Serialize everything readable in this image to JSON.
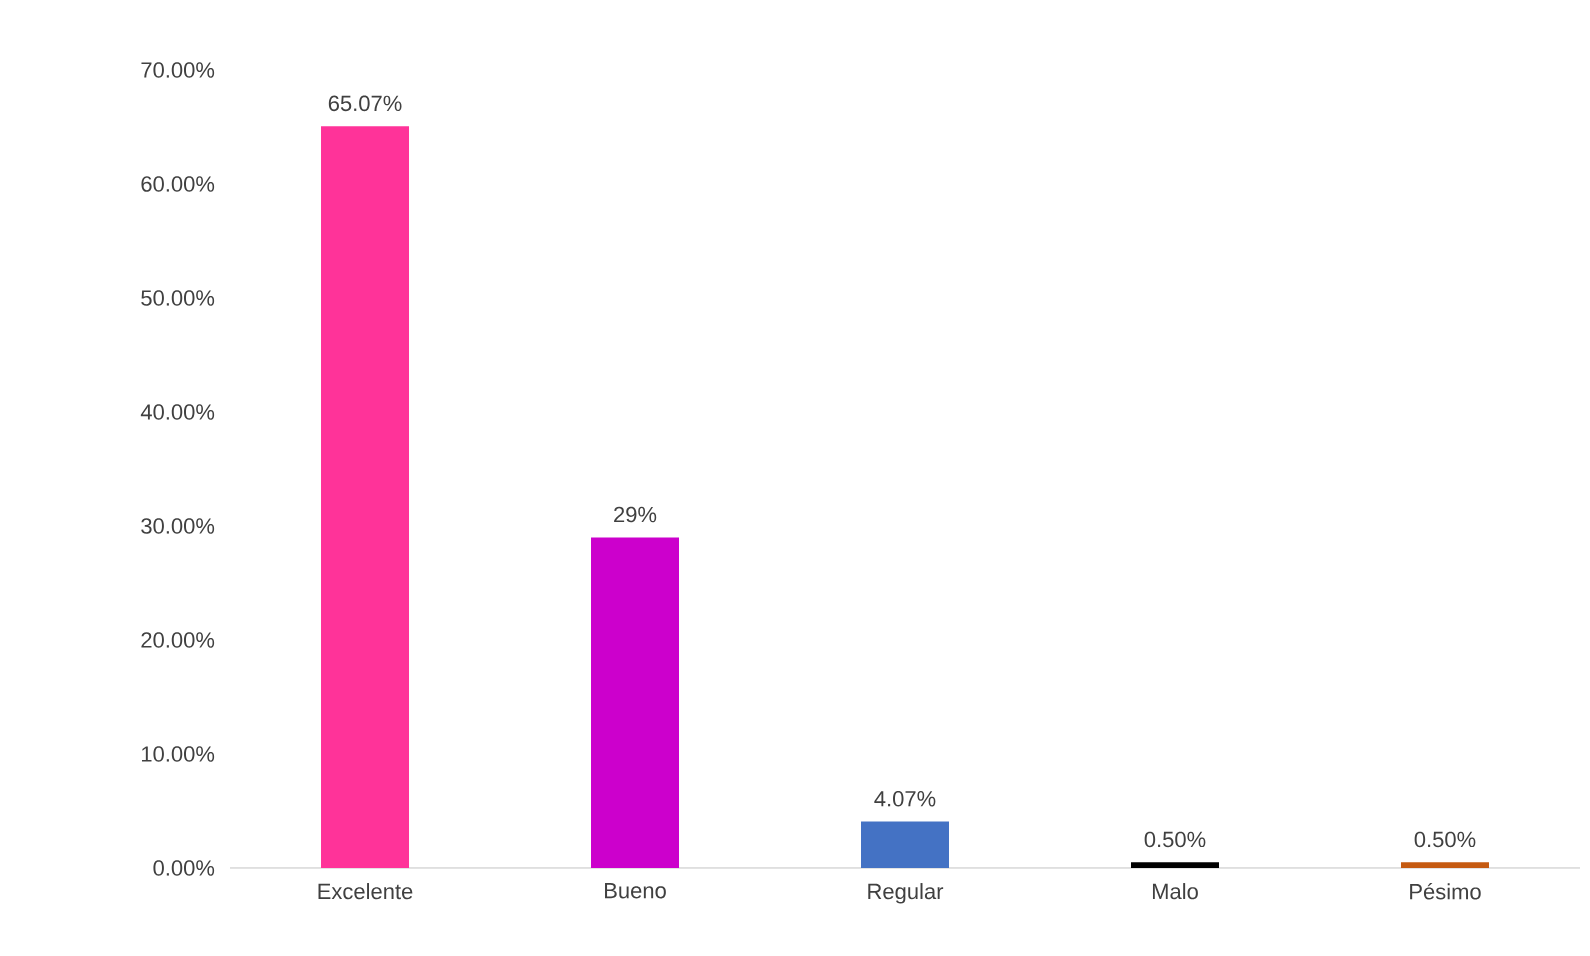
{
  "chart_data": {
    "type": "bar",
    "categories": [
      "Excelente",
      "Bueno",
      "Regular",
      "Malo",
      "Pésimo"
    ],
    "values": [
      65.07,
      29,
      4.07,
      0.5,
      0.5
    ],
    "colors": [
      "#ff3399",
      "#cc00cc",
      "#4472c4",
      "#000000",
      "#c55a11"
    ],
    "value_labels": [
      "65.07%",
      "29%",
      "4.07%",
      "0.50%",
      "0.50%"
    ],
    "ylim": [
      0,
      70
    ],
    "yticks": [
      {
        "value": 0,
        "label": "0.00%"
      },
      {
        "value": 10,
        "label": "10.00%"
      },
      {
        "value": 20,
        "label": "20.00%"
      },
      {
        "value": 30,
        "label": "30.00%"
      },
      {
        "value": 40,
        "label": "40.00%"
      },
      {
        "value": 50,
        "label": "50.00%"
      },
      {
        "value": 60,
        "label": "60.00%"
      },
      {
        "value": 70,
        "label": "70.00%"
      }
    ],
    "grid": false
  }
}
